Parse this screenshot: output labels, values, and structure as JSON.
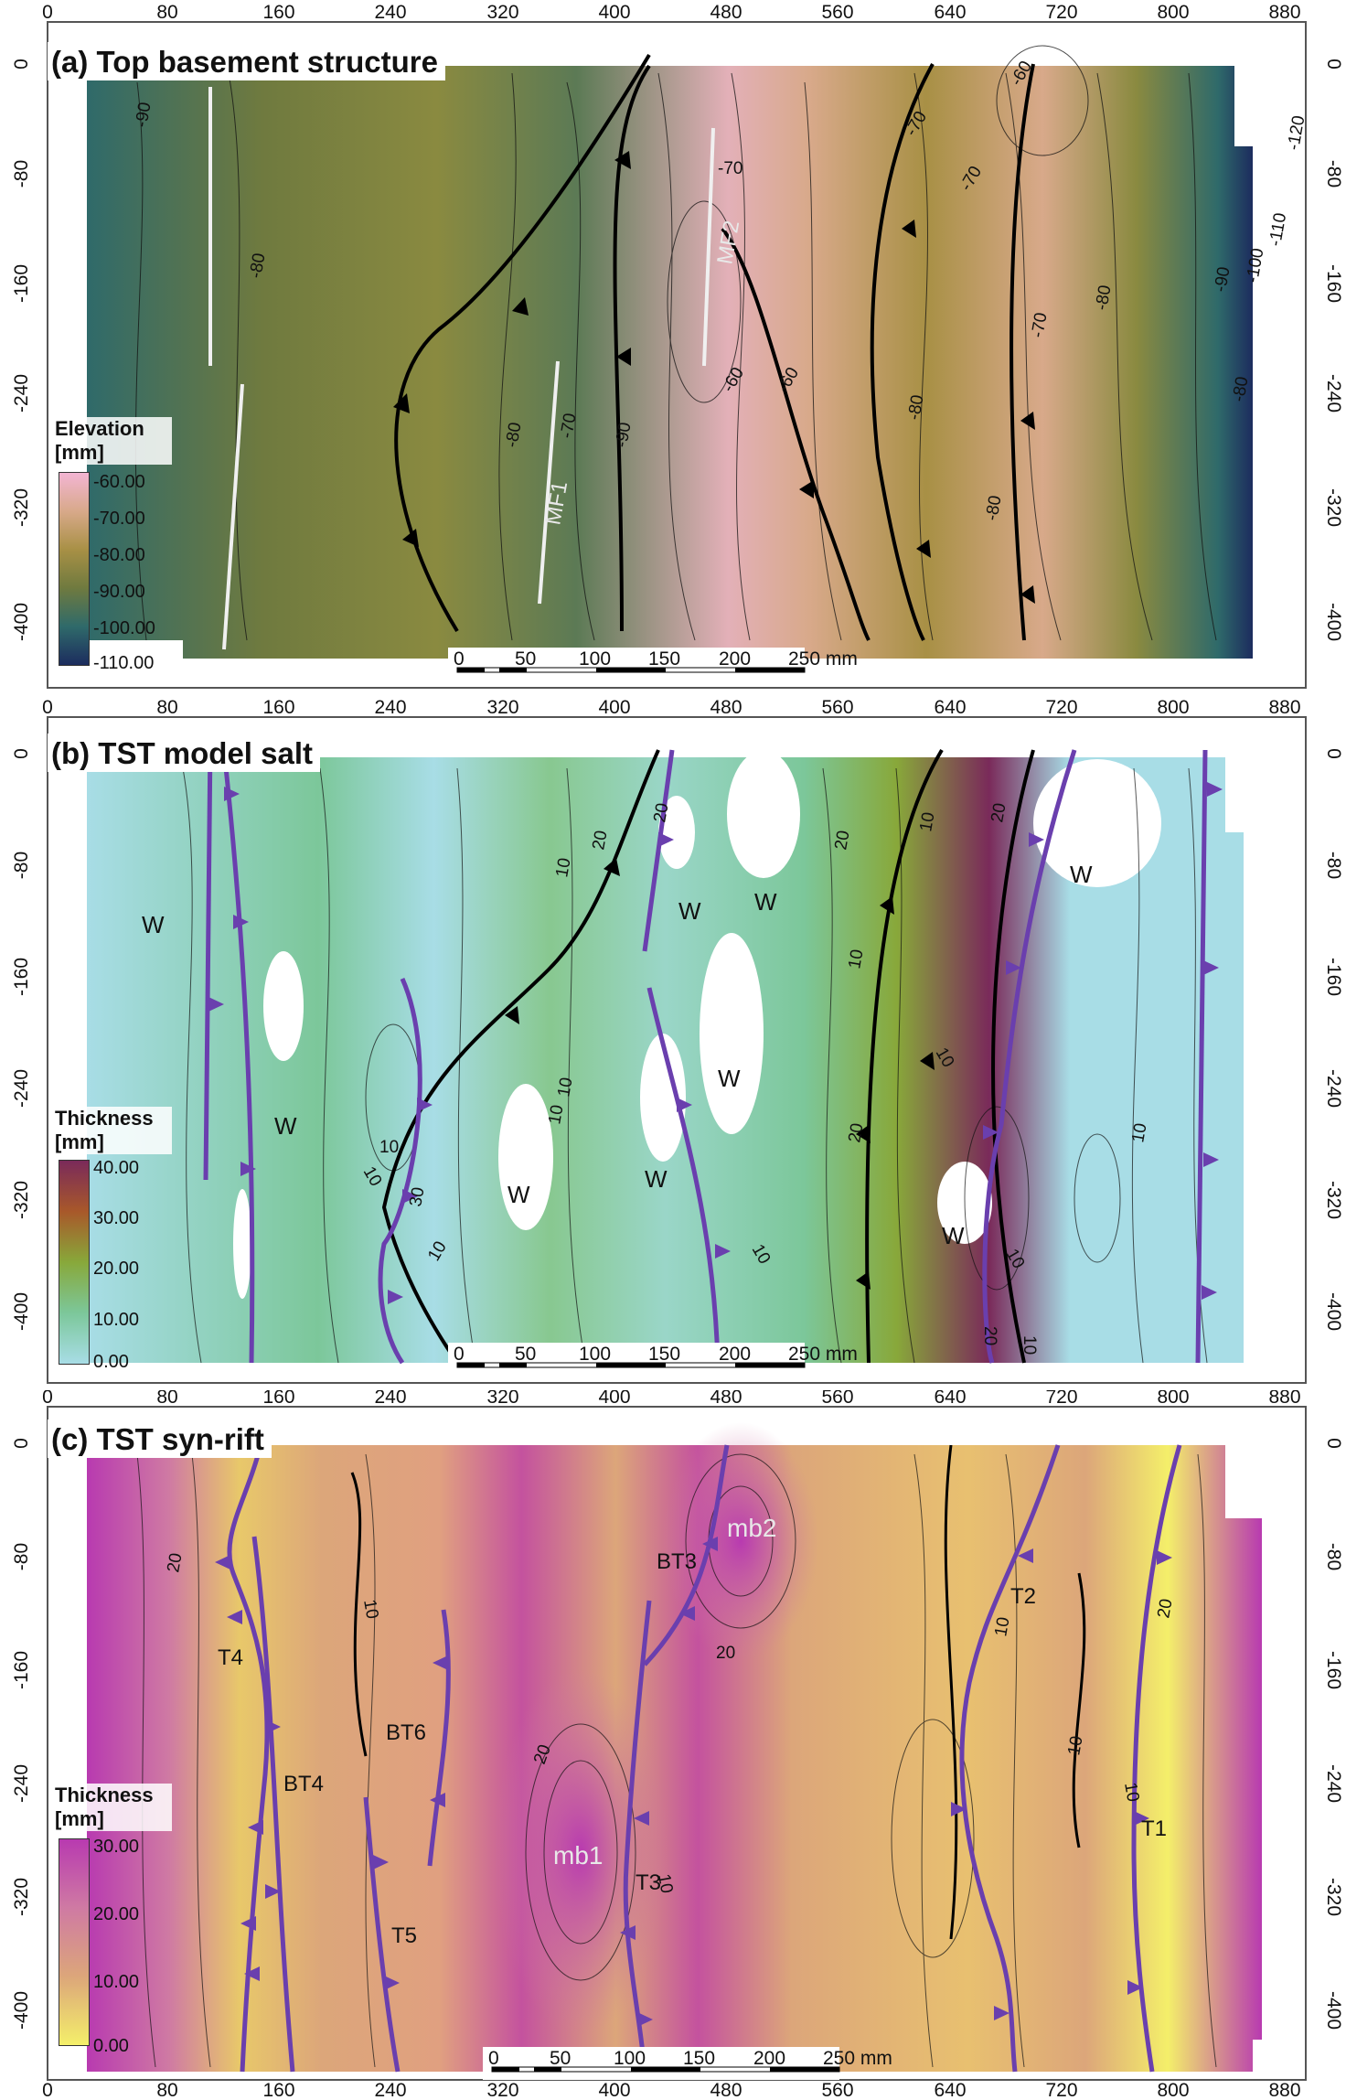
{
  "axes": {
    "x_ticks": [
      "0",
      "80",
      "160",
      "240",
      "320",
      "400",
      "480",
      "560",
      "640",
      "720",
      "800",
      "880"
    ],
    "y_ticks": [
      "0",
      "-80",
      "-160",
      "-240",
      "-320",
      "-400"
    ]
  },
  "scale_bar": {
    "labels": [
      "0",
      "50",
      "100",
      "150",
      "200",
      "250 mm"
    ]
  },
  "panels": [
    {
      "id": "a",
      "title": "(a) Top basement structure",
      "legend": {
        "title_line1": "Elevation",
        "title_line2": "[mm]",
        "values": [
          "-60.00",
          "-70.00",
          "-80.00",
          "-90.00",
          "-100.00",
          "-110.00"
        ],
        "colors": [
          "#f3b5d3",
          "#d8a98a",
          "#a89045",
          "#6f7a3f",
          "#2f6a6a",
          "#1c2c5e"
        ]
      },
      "contour_labels": [
        "-90",
        "-80",
        "-80",
        "-70",
        "-70",
        "-60",
        "-60",
        "-80",
        "-90",
        "-80",
        "-70",
        "-60",
        "-70",
        "-70",
        "-80",
        "-90",
        "-80",
        "-100",
        "-110",
        "-120"
      ],
      "fault_labels": [
        "MF1",
        "MF2"
      ]
    },
    {
      "id": "b",
      "title": "(b) TST model salt",
      "legend": {
        "title_line1": "Thickness",
        "title_line2": "[mm]",
        "values": [
          "40.00",
          "30.00",
          "20.00",
          "10.00",
          "0.00"
        ],
        "colors": [
          "#7a2a5a",
          "#a8582a",
          "#88a83a",
          "#7cc79a",
          "#a8dde6"
        ]
      },
      "contour_labels": [
        "10",
        "20",
        "10",
        "10",
        "20",
        "20",
        "10",
        "10",
        "20",
        "10",
        "20",
        "10",
        "10",
        "10",
        "20",
        "30",
        "10",
        "10",
        "10",
        "10"
      ],
      "weld_labels": [
        "W",
        "W",
        "W",
        "W",
        "W",
        "W",
        "W",
        "W",
        "W"
      ]
    },
    {
      "id": "c",
      "title": "(c) TST syn-rift",
      "legend": {
        "title_line1": "Thickness",
        "title_line2": "[mm]",
        "values": [
          "30.00",
          "20.00",
          "10.00",
          "0.00"
        ],
        "colors": [
          "#b83ab0",
          "#cf7aa3",
          "#dca67a",
          "#f4ef6a"
        ]
      },
      "contour_labels": [
        "20",
        "10",
        "20",
        "20",
        "10",
        "10",
        "10",
        "20",
        "10"
      ],
      "structure_labels": [
        "T4",
        "BT6",
        "BT4",
        "T5",
        "mb1",
        "T3",
        "BT3",
        "mb2",
        "T2",
        "T1"
      ],
      "depocentre_labels": [
        "mb1",
        "mb2"
      ]
    }
  ]
}
